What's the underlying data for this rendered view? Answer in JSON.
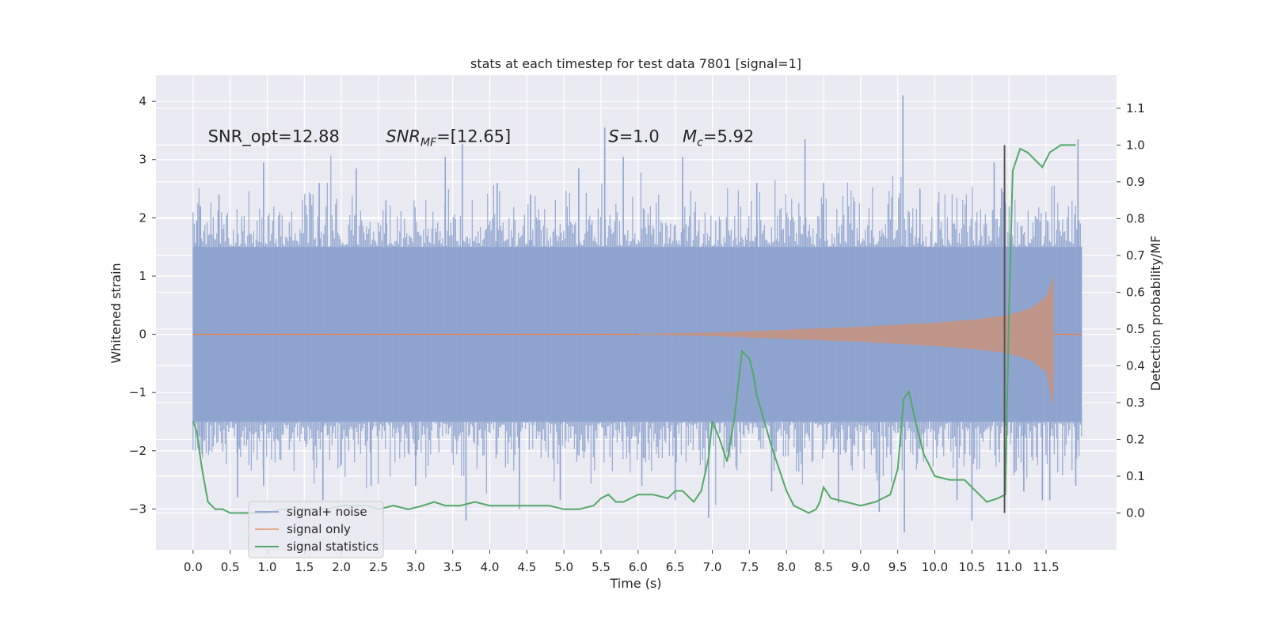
{
  "chart_data": {
    "type": "line",
    "title": "stats at each timestep for test data 7801 [signal=1]",
    "xlabel": "Time (s)",
    "ylabel": "Whitened strain",
    "y2label": "Detection probability/MF",
    "xlim": [
      -0.5,
      12.45
    ],
    "ylim": [
      -3.7,
      4.45
    ],
    "y2lim": [
      -0.1,
      1.19
    ],
    "x_ticks": [
      0.0,
      0.5,
      1.0,
      1.5,
      2.0,
      2.5,
      3.0,
      3.5,
      4.0,
      4.5,
      5.0,
      5.5,
      6.0,
      6.5,
      7.0,
      7.5,
      8.0,
      8.5,
      9.0,
      9.5,
      10.0,
      10.5,
      11.0,
      11.5
    ],
    "x_tick_labels": [
      "0.0",
      "0.5",
      "1.0",
      "1.5",
      "2.0",
      "2.5",
      "3.0",
      "3.5",
      "4.0",
      "4.5",
      "5.0",
      "5.5",
      "6.0",
      "6.5",
      "7.0",
      "7.5",
      "8.0",
      "8.5",
      "9.0",
      "9.5",
      "10.0",
      "10.5",
      "11.0",
      "11.5"
    ],
    "y_ticks": [
      -3,
      -2,
      -1,
      0,
      1,
      2,
      3,
      4
    ],
    "y_tick_labels": [
      "−3",
      "−2",
      "−1",
      "0",
      "1",
      "2",
      "3",
      "4"
    ],
    "y2_ticks": [
      0.0,
      0.1,
      0.2,
      0.3,
      0.4,
      0.5,
      0.6,
      0.7,
      0.8,
      0.9,
      1.0,
      1.1
    ],
    "y2_tick_labels": [
      "0.0",
      "0.1",
      "0.2",
      "0.3",
      "0.4",
      "0.5",
      "0.6",
      "0.7",
      "0.8",
      "0.9",
      "1.0",
      "1.1"
    ],
    "grid": true,
    "legend_position": "lower-left",
    "annotations": [
      {
        "text": "SNR_opt=12.88",
        "x": 0.2,
        "y": 3.3
      },
      {
        "text": "SNR_MF=[12.65]",
        "x": 2.6,
        "y": 3.3
      },
      {
        "text": "S=1.0",
        "x": 5.6,
        "y": 3.3
      },
      {
        "text": "M_c=5.92",
        "x": 6.6,
        "y": 3.3
      }
    ],
    "vertical_line": {
      "x": 10.94,
      "y2_range": [
        0.0,
        1.0
      ],
      "color": "#555555"
    },
    "series": [
      {
        "name": "signal+ noise",
        "axis": "left",
        "color": "#8fa4cf",
        "kind": "noise",
        "x_range": [
          0.0,
          11.98
        ],
        "band": [
          -1.5,
          1.5
        ],
        "peaks": [
          {
            "x": 0.05,
            "y": 1.95
          },
          {
            "x": 0.1,
            "y": 2.2
          },
          {
            "x": 0.12,
            "y": -2.05
          },
          {
            "x": 0.35,
            "y": 2.4
          },
          {
            "x": 0.6,
            "y": -2.8
          },
          {
            "x": 0.95,
            "y": 2.95
          },
          {
            "x": 0.95,
            "y": -2.6
          },
          {
            "x": 1.7,
            "y": 2.6
          },
          {
            "x": 1.75,
            "y": -2.85
          },
          {
            "x": 2.2,
            "y": 2.85
          },
          {
            "x": 2.4,
            "y": -2.6
          },
          {
            "x": 2.6,
            "y": 2.3
          },
          {
            "x": 3.0,
            "y": -2.6
          },
          {
            "x": 3.4,
            "y": 3.05
          },
          {
            "x": 3.63,
            "y": 3.27
          },
          {
            "x": 3.68,
            "y": -3.2
          },
          {
            "x": 4.1,
            "y": 2.6
          },
          {
            "x": 4.4,
            "y": -3.0
          },
          {
            "x": 4.55,
            "y": 2.4
          },
          {
            "x": 4.95,
            "y": -2.85
          },
          {
            "x": 5.2,
            "y": 2.85
          },
          {
            "x": 5.55,
            "y": 3.55
          },
          {
            "x": 5.8,
            "y": 3.05
          },
          {
            "x": 6.05,
            "y": -2.6
          },
          {
            "x": 6.5,
            "y": -2.85
          },
          {
            "x": 6.6,
            "y": 3.05
          },
          {
            "x": 6.95,
            "y": -3.15
          },
          {
            "x": 7.6,
            "y": 2.6
          },
          {
            "x": 7.8,
            "y": -2.7
          },
          {
            "x": 8.25,
            "y": 3.35
          },
          {
            "x": 8.5,
            "y": 2.6
          },
          {
            "x": 8.7,
            "y": -2.9
          },
          {
            "x": 9.25,
            "y": -3.05
          },
          {
            "x": 9.57,
            "y": 4.1
          },
          {
            "x": 9.59,
            "y": -3.4
          },
          {
            "x": 9.8,
            "y": 2.5
          },
          {
            "x": 10.3,
            "y": -2.85
          },
          {
            "x": 10.5,
            "y": -3.2
          },
          {
            "x": 10.8,
            "y": 2.95
          },
          {
            "x": 10.9,
            "y": 2.5
          },
          {
            "x": 11.2,
            "y": -2.7
          },
          {
            "x": 11.45,
            "y": -2.85
          },
          {
            "x": 11.55,
            "y": -2.85
          },
          {
            "x": 11.93,
            "y": 3.35
          },
          {
            "x": 11.9,
            "y": -2.6
          }
        ]
      },
      {
        "name": "signal only",
        "axis": "left",
        "color": "#dd8452",
        "kind": "chirp",
        "start": 6.0,
        "peak_time": 11.6,
        "end": 11.98,
        "peak_amplitude": [
          -1.25,
          1.0
        ],
        "amplitude_at": [
          {
            "x": 6.0,
            "a": 0.01
          },
          {
            "x": 7.0,
            "a": 0.03
          },
          {
            "x": 8.0,
            "a": 0.08
          },
          {
            "x": 9.0,
            "a": 0.13
          },
          {
            "x": 10.0,
            "a": 0.2
          },
          {
            "x": 10.5,
            "a": 0.25
          },
          {
            "x": 11.0,
            "a": 0.33
          },
          {
            "x": 11.3,
            "a": 0.45
          },
          {
            "x": 11.5,
            "a": 0.65
          }
        ]
      },
      {
        "name": "signal statistics",
        "axis": "right",
        "color": "#55a868",
        "kind": "line",
        "x": [
          0.0,
          0.05,
          0.12,
          0.2,
          0.3,
          0.4,
          0.5,
          0.6,
          0.8,
          1.0,
          1.2,
          1.4,
          1.6,
          1.8,
          2.0,
          2.2,
          2.35,
          2.5,
          2.7,
          2.9,
          3.1,
          3.25,
          3.4,
          3.6,
          3.8,
          4.0,
          4.2,
          4.4,
          4.6,
          4.8,
          5.0,
          5.2,
          5.4,
          5.5,
          5.6,
          5.7,
          5.8,
          5.9,
          6.0,
          6.2,
          6.4,
          6.5,
          6.6,
          6.75,
          6.85,
          6.95,
          7.0,
          7.1,
          7.2,
          7.3,
          7.4,
          7.5,
          7.55,
          7.6,
          7.7,
          7.8,
          7.9,
          8.0,
          8.1,
          8.2,
          8.3,
          8.4,
          8.45,
          8.5,
          8.6,
          8.8,
          9.0,
          9.2,
          9.4,
          9.5,
          9.58,
          9.65,
          9.75,
          9.85,
          10.0,
          10.2,
          10.4,
          10.5,
          10.7,
          10.85,
          10.95,
          11.0,
          11.05,
          11.15,
          11.25,
          11.35,
          11.45,
          11.55,
          11.7,
          11.9
        ],
        "y": [
          0.25,
          0.22,
          0.12,
          0.03,
          0.01,
          0.01,
          0.0,
          0.0,
          0.0,
          0.0,
          0.01,
          0.01,
          0.01,
          0.01,
          0.02,
          0.02,
          0.02,
          0.01,
          0.02,
          0.01,
          0.02,
          0.03,
          0.02,
          0.02,
          0.03,
          0.02,
          0.02,
          0.02,
          0.02,
          0.02,
          0.01,
          0.01,
          0.02,
          0.04,
          0.05,
          0.03,
          0.03,
          0.04,
          0.05,
          0.05,
          0.04,
          0.06,
          0.06,
          0.03,
          0.06,
          0.15,
          0.25,
          0.2,
          0.14,
          0.26,
          0.44,
          0.42,
          0.38,
          0.32,
          0.25,
          0.18,
          0.12,
          0.06,
          0.02,
          0.01,
          0.0,
          0.01,
          0.03,
          0.07,
          0.04,
          0.03,
          0.02,
          0.03,
          0.05,
          0.12,
          0.31,
          0.33,
          0.24,
          0.16,
          0.1,
          0.09,
          0.09,
          0.07,
          0.03,
          0.04,
          0.05,
          0.55,
          0.93,
          0.99,
          0.98,
          0.96,
          0.94,
          0.98,
          1.0,
          1.0
        ]
      }
    ]
  }
}
